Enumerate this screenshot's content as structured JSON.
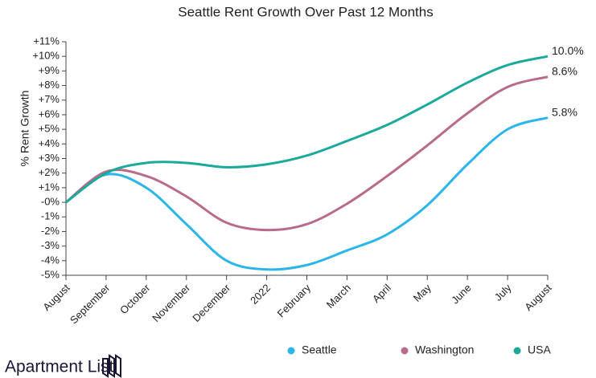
{
  "chart_data": {
    "type": "line",
    "title": "Seattle Rent Growth Over Past 12 Months",
    "y_label": "% Rent Growth",
    "categories": [
      "August",
      "September",
      "October",
      "November",
      "December",
      "2022",
      "February",
      "March",
      "April",
      "May",
      "June",
      "July",
      "August"
    ],
    "series": [
      {
        "name": "Seattle",
        "color": "#2bb5e8",
        "values": [
          0,
          1.9,
          1.0,
          -1.5,
          -4.0,
          -4.6,
          -4.3,
          -3.3,
          -2.2,
          -0.2,
          2.6,
          5.0,
          5.8
        ],
        "value_labels": [
          null,
          null,
          null,
          null,
          null,
          null,
          null,
          null,
          null,
          null,
          null,
          null,
          "5.8%"
        ]
      },
      {
        "name": "Washington",
        "color": "#b86b8a",
        "values": [
          0,
          2.1,
          1.8,
          0.4,
          -1.4,
          -1.9,
          -1.5,
          -0.1,
          1.8,
          3.9,
          6.1,
          7.9,
          8.6
        ],
        "value_labels": [
          null,
          null,
          null,
          null,
          null,
          null,
          null,
          null,
          null,
          null,
          null,
          null,
          "8.6%"
        ]
      },
      {
        "name": "USA",
        "color": "#1aa99a",
        "values": [
          0,
          2.0,
          2.7,
          2.7,
          2.4,
          2.6,
          3.2,
          4.2,
          5.3,
          6.7,
          8.2,
          9.4,
          10.0
        ],
        "value_labels": [
          null,
          null,
          null,
          null,
          null,
          null,
          null,
          null,
          null,
          null,
          null,
          null,
          "10.0%"
        ]
      }
    ],
    "ylim": [
      -5,
      11
    ],
    "yticks": [
      {
        "value": 11,
        "label": "+11%"
      },
      {
        "value": 10,
        "label": "+10%"
      },
      {
        "value": 9,
        "label": "+9%"
      },
      {
        "value": 8,
        "label": "+8%"
      },
      {
        "value": 7,
        "label": "+7%"
      },
      {
        "value": 6,
        "label": "+6%"
      },
      {
        "value": 5,
        "label": "+5%"
      },
      {
        "value": 4,
        "label": "+4%"
      },
      {
        "value": 3,
        "label": "+3%"
      },
      {
        "value": 2,
        "label": "+2%"
      },
      {
        "value": 1,
        "label": "+1%"
      },
      {
        "value": 0,
        "label": "-0%"
      },
      {
        "value": -1,
        "label": "-1%"
      },
      {
        "value": -2,
        "label": "-2%"
      },
      {
        "value": -3,
        "label": "-3%"
      },
      {
        "value": -4,
        "label": "-4%"
      },
      {
        "value": -5,
        "label": "-5%"
      }
    ],
    "grid": false,
    "legend": "bottom",
    "brand": "Apartment List"
  }
}
